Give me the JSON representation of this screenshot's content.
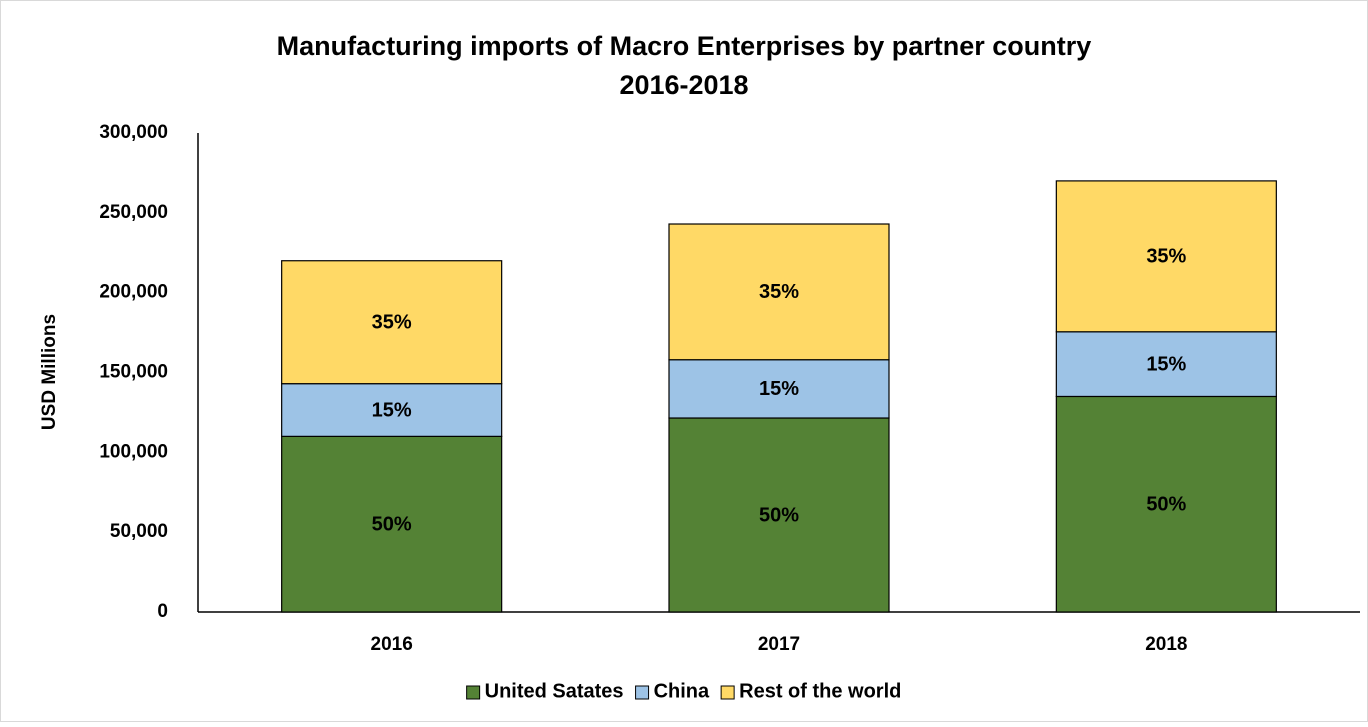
{
  "chart_data": {
    "type": "stacked_bar",
    "title": "Manufacturing imports of Macro Enterprises by partner country",
    "subtitle": "2016-2018",
    "ylabel": "USD Millions",
    "categories": [
      "2016",
      "2017",
      "2018"
    ],
    "series": [
      {
        "name": "United Satates",
        "color": "#548235",
        "values": [
          110000,
          121500,
          135000
        ],
        "value_labels": [
          "50%",
          "50%",
          "50%"
        ]
      },
      {
        "name": "China",
        "color": "#9dc3e6",
        "values": [
          33000,
          36500,
          40500
        ],
        "value_labels": [
          "15%",
          "15%",
          "15%"
        ]
      },
      {
        "name": "Rest of the world",
        "color": "#ffd966",
        "values": [
          77000,
          85000,
          94500
        ],
        "value_labels": [
          "35%",
          "35%",
          "35%"
        ]
      }
    ],
    "ylim": [
      0,
      300000
    ],
    "yticks": [
      0,
      {
        "value": 50000,
        "label": "50,000"
      },
      {
        "value": 100000,
        "label": "100,000"
      },
      {
        "value": 150000,
        "label": "150,000"
      },
      {
        "value": 200000,
        "label": "200,000"
      },
      {
        "value": 250000,
        "label": "250,000"
      },
      {
        "value": 300000,
        "label": "300,000"
      }
    ],
    "grid": false,
    "legend": "bottom"
  }
}
